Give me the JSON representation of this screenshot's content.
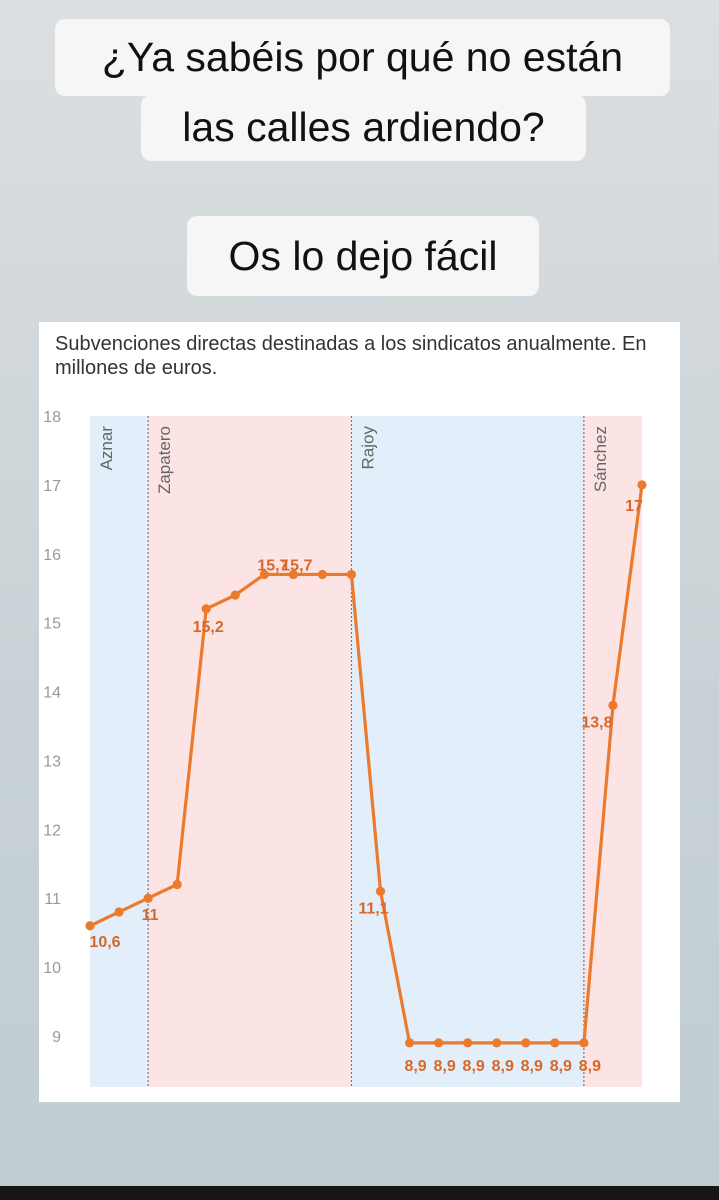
{
  "captions": {
    "line1": "¿Ya sabéis por qué no están",
    "line2": "las calles ardiendo?",
    "line3": "Os lo dejo fácil"
  },
  "chart_data": {
    "type": "line",
    "title": "Subvenciones directas destinadas a los sindicatos anualmente. En millones de euros.",
    "ylim": [
      8.5,
      18
    ],
    "yticks": [
      9,
      10,
      11,
      12,
      13,
      14,
      15,
      16,
      17,
      18
    ],
    "x": [
      1,
      2,
      3,
      4,
      5,
      6,
      7,
      8,
      9,
      10,
      11,
      12,
      13,
      14,
      15,
      16,
      17,
      18,
      19,
      20
    ],
    "series": [
      {
        "values": [
          10.6,
          10.8,
          11,
          11.2,
          15.2,
          15.4,
          15.7,
          15.7,
          15.7,
          15.7,
          11.1,
          8.9,
          8.9,
          8.9,
          8.9,
          8.9,
          8.9,
          8.9,
          13.8,
          17
        ],
        "color": "#ec7a2c"
      }
    ],
    "data_labels": [
      {
        "i": 0,
        "text": "10,6"
      },
      {
        "i": 2,
        "text": "11"
      },
      {
        "i": 4,
        "text": "15,2"
      },
      {
        "i": 6,
        "text": "15,7"
      },
      {
        "i": 8,
        "text": "15,7"
      },
      {
        "i": 10,
        "text": "11,1"
      },
      {
        "i": 11,
        "text": "8,9"
      },
      {
        "i": 12,
        "text": "8,9"
      },
      {
        "i": 13,
        "text": "8,9"
      },
      {
        "i": 14,
        "text": "8,9"
      },
      {
        "i": 15,
        "text": "8,9"
      },
      {
        "i": 16,
        "text": "8,9"
      },
      {
        "i": 17,
        "text": "8,9"
      },
      {
        "i": 18,
        "text": "13,8"
      },
      {
        "i": 19,
        "text": "17"
      }
    ],
    "periods": [
      {
        "name": "Aznar",
        "from": 1,
        "to": 3,
        "color": "#e2effa"
      },
      {
        "name": "Zapatero",
        "from": 3,
        "to": 10,
        "color": "#fce4e4"
      },
      {
        "name": "Rajoy",
        "from": 10,
        "to": 18,
        "color": "#e2effa"
      },
      {
        "name": "Sánchez",
        "from": 18,
        "to": 20,
        "color": "#fce4e4"
      }
    ],
    "grid": false
  }
}
